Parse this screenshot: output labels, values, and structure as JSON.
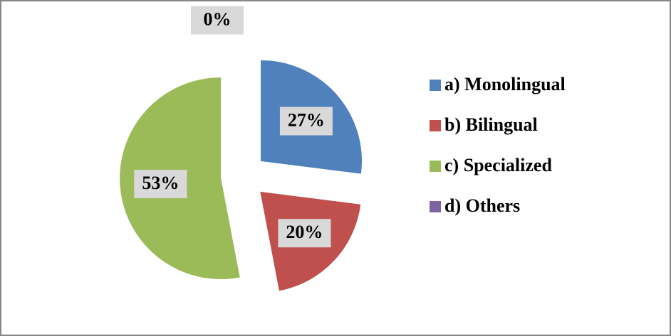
{
  "chart_data": {
    "type": "pie",
    "categories": [
      "a) Monolingual",
      "b) Bilingual",
      "c) Specialized",
      "d) Others"
    ],
    "values": [
      27,
      20,
      53,
      0
    ],
    "value_labels": [
      "27%",
      "20%",
      "53%",
      "0%"
    ],
    "colors": [
      "#4f81bd",
      "#c0504d",
      "#9bbb59",
      "#8064a2"
    ],
    "legend": "right"
  }
}
